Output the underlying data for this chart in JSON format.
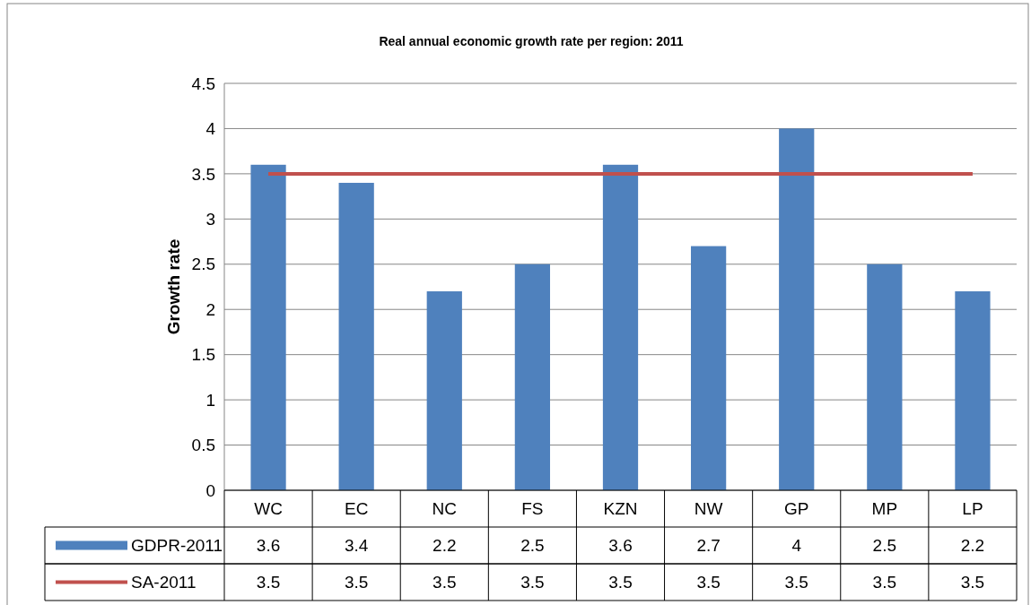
{
  "chart_data": {
    "type": "bar",
    "title": "Real annual economic growth rate per region: 2011",
    "ylabel": "Growth rate",
    "categories": [
      "WC",
      "EC",
      "NC",
      "FS",
      "KZN",
      "NW",
      "GP",
      "MP",
      "LP"
    ],
    "series": [
      {
        "name": "GDPR-2011",
        "color": "#4f81bd",
        "values": [
          3.6,
          3.4,
          2.2,
          2.5,
          3.6,
          2.7,
          4,
          2.5,
          2.2
        ]
      },
      {
        "name": "SA-2011",
        "type": "line",
        "color": "#c0504d",
        "values": [
          3.5,
          3.5,
          3.5,
          3.5,
          3.5,
          3.5,
          3.5,
          3.5,
          3.5
        ]
      }
    ],
    "ylim": [
      0,
      4.5
    ],
    "yticks": [
      0,
      0.5,
      1,
      1.5,
      2,
      2.5,
      3,
      3.5,
      4,
      4.5
    ],
    "grid": "y",
    "legend": "bottom",
    "data_labels": true,
    "marker": "none",
    "line_style": "solid"
  }
}
